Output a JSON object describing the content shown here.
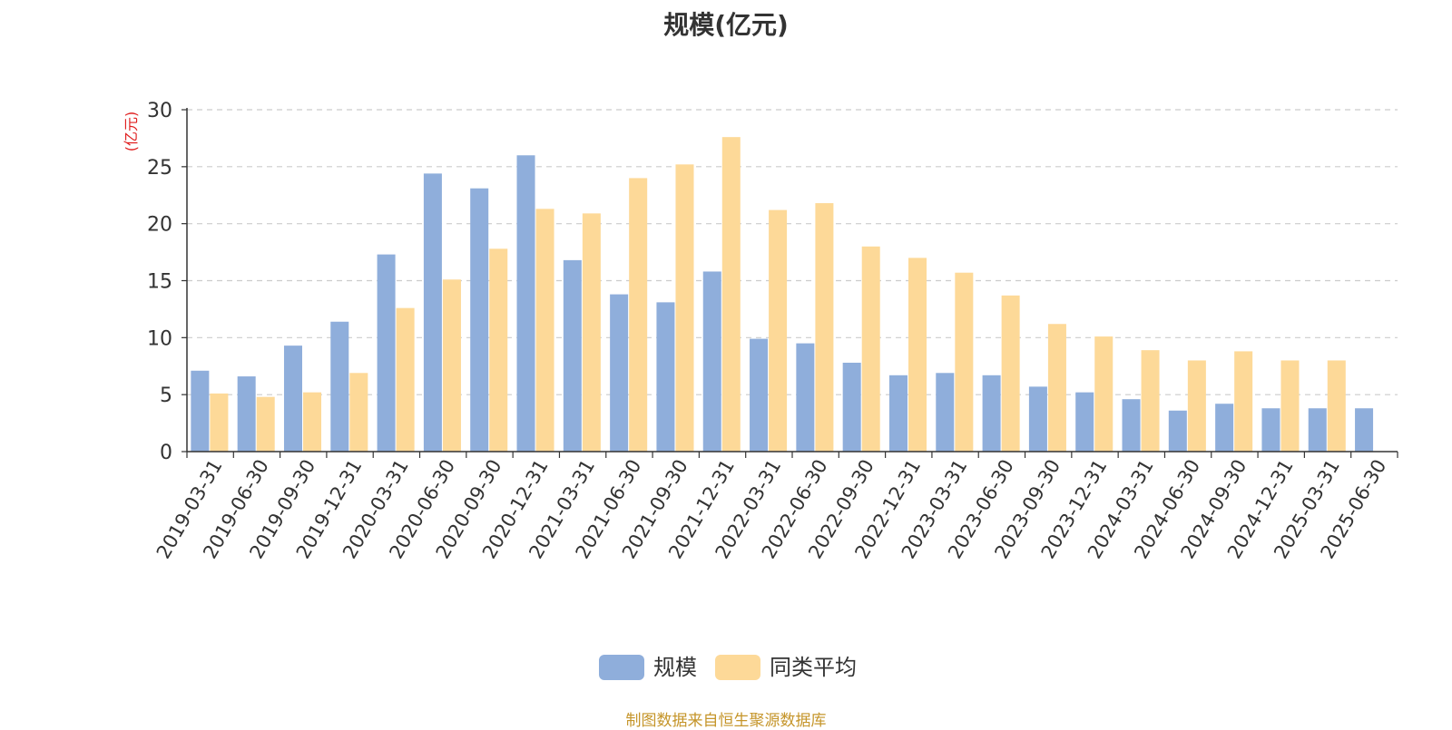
{
  "chart_data": {
    "type": "bar",
    "title": "规模(亿元)",
    "ylabel": "(亿元)",
    "xlabel": "",
    "ylim": [
      0,
      30
    ],
    "yticks": [
      0,
      5,
      10,
      15,
      20,
      25,
      30
    ],
    "grid": true,
    "legend_position": "bottom-center",
    "categories": [
      "2019-03-31",
      "2019-06-30",
      "2019-09-30",
      "2019-12-31",
      "2020-03-31",
      "2020-06-30",
      "2020-09-30",
      "2020-12-31",
      "2021-03-31",
      "2021-06-30",
      "2021-09-30",
      "2021-12-31",
      "2022-03-31",
      "2022-06-30",
      "2022-09-30",
      "2022-12-31",
      "2023-03-31",
      "2023-06-30",
      "2023-09-30",
      "2023-12-31",
      "2024-03-31",
      "2024-06-30",
      "2024-09-30",
      "2024-12-31",
      "2025-03-31",
      "2025-06-30"
    ],
    "series": [
      {
        "name": "规模",
        "color": "#8faedb",
        "values": [
          7.1,
          6.6,
          9.3,
          11.4,
          17.3,
          24.4,
          23.1,
          26.0,
          16.8,
          13.8,
          13.1,
          15.8,
          9.9,
          9.5,
          7.8,
          6.7,
          6.9,
          6.7,
          5.7,
          5.2,
          4.6,
          3.6,
          4.2,
          3.8,
          3.8,
          3.8
        ]
      },
      {
        "name": "同类平均",
        "color": "#fdd998",
        "values": [
          5.1,
          4.8,
          5.2,
          6.9,
          12.6,
          15.1,
          17.8,
          21.3,
          20.9,
          24.0,
          25.2,
          27.6,
          21.2,
          21.8,
          18.0,
          17.0,
          15.7,
          13.7,
          11.2,
          10.1,
          8.9,
          8.0,
          8.8,
          8.0,
          8.0,
          null
        ]
      }
    ]
  },
  "source_note": "制图数据来自恒生聚源数据库"
}
